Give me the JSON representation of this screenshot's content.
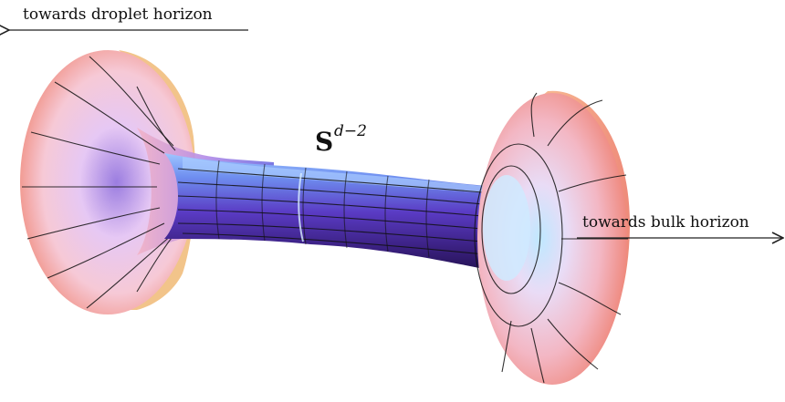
{
  "labels": {
    "left_arrow": "towards droplet horizon",
    "right_arrow": "towards bulk horizon",
    "sphere_base": "S",
    "sphere_exponent": "d−2"
  },
  "surface": {
    "type": "wormhole-like tube joining two flared funnels",
    "colors": {
      "funnel_rim": "#f08a7a",
      "funnel_mid": "#f4d2e6",
      "throat_top": "#6f8ff0",
      "throat_mid": "#4d2fb0",
      "throat_bottom": "#2a1660",
      "highlight": "#d9f0ff",
      "tan": "#f2c48a"
    }
  }
}
